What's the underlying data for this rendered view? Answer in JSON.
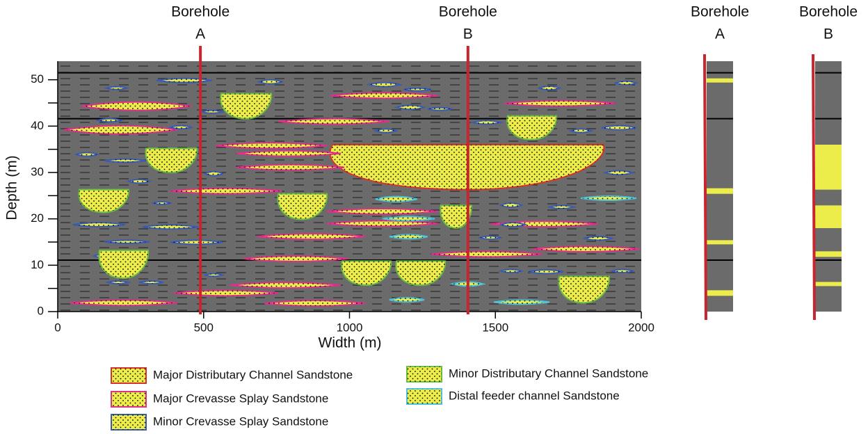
{
  "chart_data": {
    "type": "cross-section",
    "xlabel": "Width (m)",
    "ylabel": "Depth (m)",
    "xlim": [
      0,
      2000
    ],
    "ylim": [
      0,
      54
    ],
    "xticks": [
      0,
      500,
      1000,
      1500,
      2000
    ],
    "yticks": [
      0,
      10,
      20,
      30,
      40,
      50
    ],
    "background": "#6b6b6b",
    "markers": [
      51.5,
      41.6,
      11.1
    ],
    "boreholes": [
      {
        "name": "Borehole",
        "label": "A",
        "x": 489
      },
      {
        "name": "Borehole",
        "label": "B",
        "x": 1406
      }
    ],
    "series": [
      {
        "name": "Major Distributary Channel Sandstone",
        "color": "#d9342b",
        "fill": "#ecec4a",
        "shape": "channel",
        "bodies": [
          {
            "x": [
              942,
              1871
            ],
            "y": [
              26.3,
              36
            ]
          }
        ]
      },
      {
        "name": "Major Crevasse Splay Sandstone",
        "color": "#e0308c",
        "fill": "#ecec4a",
        "shape": "lens",
        "bodies": [
          {
            "x": [
              81,
              458
            ],
            "y": [
              43.4,
              45.2
            ]
          },
          {
            "x": [
              21,
              410
            ],
            "y": [
              38.3,
              40.1
            ]
          },
          {
            "x": [
              541,
              923
            ],
            "y": [
              35.2,
              36.4
            ]
          },
          {
            "x": [
              612,
              970
            ],
            "y": [
              33.5,
              34.7
            ]
          },
          {
            "x": [
              612,
              982
            ],
            "y": [
              30.5,
              31.7
            ]
          },
          {
            "x": [
              386,
              768
            ],
            "y": [
              25.4,
              26.6
            ]
          },
          {
            "x": [
              934,
              1304
            ],
            "y": [
              46,
              47.2
            ]
          },
          {
            "x": [
              756,
              1137
            ],
            "y": [
              40.4,
              41.6
            ]
          },
          {
            "x": [
              1530,
              1912
            ],
            "y": [
              44.3,
              45.5
            ]
          },
          {
            "x": [
              922,
              1304
            ],
            "y": [
              21,
              22.2
            ]
          },
          {
            "x": [
              922,
              1304
            ],
            "y": [
              18.4,
              19.6
            ]
          },
          {
            "x": [
              1483,
              1852
            ],
            "y": [
              18.3,
              19.5
            ]
          },
          {
            "x": [
              684,
              1054
            ],
            "y": [
              15.6,
              16.8
            ]
          },
          {
            "x": [
              1280,
              1662
            ],
            "y": [
              11.8,
              13
            ]
          },
          {
            "x": [
              1626,
              1995
            ],
            "y": [
              12.9,
              14.1
            ]
          },
          {
            "x": [
              636,
              994
            ],
            "y": [
              10.8,
              12
            ]
          },
          {
            "x": [
              589,
              970
            ],
            "y": [
              5.1,
              6.3
            ]
          },
          {
            "x": [
              398,
              756
            ],
            "y": [
              3.4,
              4.6
            ]
          },
          {
            "x": [
              41,
              410
            ],
            "y": [
              1.3,
              2.5
            ]
          },
          {
            "x": [
              708,
              1054
            ],
            "y": [
              1.2,
              2.4
            ]
          }
        ]
      },
      {
        "name": "Minor Crevasse Splay Sandstone",
        "color": "#3a5bb5",
        "fill": "#ecec4a",
        "shape": "lens",
        "bodies": [
          {
            "x": [
              338,
              529
            ],
            "y": [
              49.4,
              50.3
            ]
          },
          {
            "x": [
              167,
              238
            ],
            "y": [
              47.9,
              48.5
            ]
          },
          {
            "x": [
              689,
              768
            ],
            "y": [
              49.1,
              50
            ]
          },
          {
            "x": [
              493,
              565
            ],
            "y": [
              42.8,
              43.4
            ]
          },
          {
            "x": [
              136,
              219
            ],
            "y": [
              40.9,
              41.6
            ]
          },
          {
            "x": [
              386,
              458
            ],
            "y": [
              39.4,
              40.1
            ]
          },
          {
            "x": [
              64,
              136
            ],
            "y": [
              33.5,
              34.3
            ]
          },
          {
            "x": [
              160,
              303
            ],
            "y": [
              32.2,
              32.9
            ]
          },
          {
            "x": [
              505,
              565
            ],
            "y": [
              29.3,
              30.2
            ]
          },
          {
            "x": [
              243,
              315
            ],
            "y": [
              27.7,
              28.5
            ]
          },
          {
            "x": [
              327,
              386
            ],
            "y": [
              23.1,
              23.7
            ]
          },
          {
            "x": [
              52,
              231
            ],
            "y": [
              18.3,
              19.2
            ]
          },
          {
            "x": [
              291,
              482
            ],
            "y": [
              17.8,
              18.7
            ]
          },
          {
            "x": [
              386,
              565
            ],
            "y": [
              14.5,
              15.4
            ]
          },
          {
            "x": [
              160,
              315
            ],
            "y": [
              14.7,
              15.4
            ]
          },
          {
            "x": [
              124,
              172
            ],
            "y": [
              11.7,
              12.3
            ]
          },
          {
            "x": [
              1066,
              1173
            ],
            "y": [
              48.5,
              49.4
            ]
          },
          {
            "x": [
              1185,
              1280
            ],
            "y": [
              47.6,
              48.2
            ]
          },
          {
            "x": [
              1161,
              1256
            ],
            "y": [
              43.6,
              44.5
            ]
          },
          {
            "x": [
              1268,
              1352
            ],
            "y": [
              43.4,
              44
            ]
          },
          {
            "x": [
              1089,
              1161
            ],
            "y": [
              38.6,
              39.4
            ]
          },
          {
            "x": [
              1423,
              1518
            ],
            "y": [
              40.4,
              41.2
            ]
          },
          {
            "x": [
              1650,
              1721
            ],
            "y": [
              47.8,
              48.6
            ]
          },
          {
            "x": [
              1912,
              1983
            ],
            "y": [
              48.9,
              49.7
            ]
          },
          {
            "x": [
              1757,
              1829
            ],
            "y": [
              38.6,
              39.4
            ]
          },
          {
            "x": [
              1864,
              1983
            ],
            "y": [
              39.2,
              40.1
            ]
          },
          {
            "x": [
              1876,
              1971
            ],
            "y": [
              29.5,
              30.4
            ]
          },
          {
            "x": [
              1518,
              1590
            ],
            "y": [
              22.5,
              23.4
            ]
          },
          {
            "x": [
              1685,
              1769
            ],
            "y": [
              22.2,
              22.9
            ]
          },
          {
            "x": [
              1518,
              1602
            ],
            "y": [
              18.3,
              19.2
            ]
          },
          {
            "x": [
              1447,
              1518
            ],
            "y": [
              15.6,
              16.3
            ]
          },
          {
            "x": [
              1805,
              1900
            ],
            "y": [
              15.4,
              16.2
            ]
          },
          {
            "x": [
              1518,
              1590
            ],
            "y": [
              8.4,
              9.1
            ]
          },
          {
            "x": [
              1614,
              1733
            ],
            "y": [
              8.2,
              9
            ]
          },
          {
            "x": [
              1900,
              1971
            ],
            "y": [
              8.4,
              9.1
            ]
          },
          {
            "x": [
              505,
              565
            ],
            "y": [
              7.6,
              8.2
            ]
          },
          {
            "x": [
              172,
              243
            ],
            "y": [
              6,
              6.6
            ]
          },
          {
            "x": [
              279,
              362
            ],
            "y": [
              6,
              6.6
            ]
          }
        ]
      },
      {
        "name": "Minor Distributary Channel Sandstone",
        "color": "#6cbf44",
        "fill": "#ecec4a",
        "shape": "channel",
        "bodies": [
          {
            "x": [
              560,
              732
            ],
            "y": [
              41.6,
              47
            ]
          },
          {
            "x": [
              1542,
              1709
            ],
            "y": [
              37.1,
              42.2
            ]
          },
          {
            "x": [
              303,
              477
            ],
            "y": [
              30,
              35.2
            ]
          },
          {
            "x": [
              74,
              243
            ],
            "y": [
              21.4,
              26.3
            ]
          },
          {
            "x": [
              756,
              923
            ],
            "y": [
              19.9,
              25.4
            ]
          },
          {
            "x": [
              1313,
              1418
            ],
            "y": [
              18,
              22.9
            ]
          },
          {
            "x": [
              143,
              310
            ],
            "y": [
              7.2,
              13.2
            ]
          },
          {
            "x": [
              975,
              1142
            ],
            "y": [
              5.7,
              10.9
            ]
          },
          {
            "x": [
              1161,
              1328
            ],
            "y": [
              5.7,
              10.9
            ]
          },
          {
            "x": [
              1719,
              1890
            ],
            "y": [
              1.9,
              7.6
            ]
          }
        ]
      },
      {
        "name": "Distal feeder channel Sandstone",
        "color": "#4fc3d9",
        "fill": "#ecec4a",
        "shape": "lens",
        "bodies": [
          {
            "x": [
              1089,
              1232
            ],
            "y": [
              23.7,
              24.8
            ]
          },
          {
            "x": [
              1113,
              1292
            ],
            "y": [
              19.6,
              20.5
            ]
          },
          {
            "x": [
              1137,
              1268
            ],
            "y": [
              15.7,
              16.6
            ]
          },
          {
            "x": [
              1137,
              1256
            ],
            "y": [
              2.1,
              3
            ]
          },
          {
            "x": [
              1352,
              1459
            ],
            "y": [
              5.5,
              6.4
            ]
          },
          {
            "x": [
              1495,
              1685
            ],
            "y": [
              1.6,
              2.5
            ]
          },
          {
            "x": [
              1793,
              1983
            ],
            "y": [
              24,
              24.9
            ]
          }
        ]
      }
    ]
  }
}
